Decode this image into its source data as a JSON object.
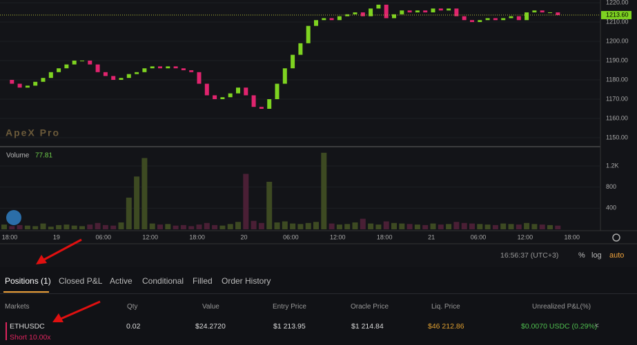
{
  "chart": {
    "logo": "ApeX Pro",
    "price_ticks": [
      {
        "value": 1150,
        "label": "1150.00"
      },
      {
        "value": 1160,
        "label": "1160.00"
      },
      {
        "value": 1170,
        "label": "1170.00"
      },
      {
        "value": 1180,
        "label": "1180.00"
      },
      {
        "value": 1190,
        "label": "1190.00"
      },
      {
        "value": 1200,
        "label": "1200.00"
      },
      {
        "value": 1210,
        "label": "1210.00"
      },
      {
        "value": 1220,
        "label": "1220.00"
      }
    ],
    "current_price": {
      "value": 1213.6,
      "label": "1213.60"
    },
    "closes": [
      1180,
      1178,
      1176,
      1177,
      1179,
      1181,
      1184,
      1186,
      1188,
      1190,
      1190,
      1188,
      1184,
      1182,
      1180,
      1181,
      1183,
      1184,
      1186,
      1187,
      1186,
      1187,
      1186,
      1185,
      1184,
      1178,
      1172,
      1170,
      1171,
      1173,
      1176,
      1172,
      1166,
      1165,
      1170,
      1178,
      1186,
      1193,
      1199,
      1208,
      1211,
      1212,
      1211,
      1213,
      1214,
      1215,
      1213,
      1217,
      1219,
      1212,
      1214,
      1216,
      1215,
      1216,
      1215,
      1217,
      1216,
      1217,
      1213,
      1211,
      1210,
      1211,
      1212,
      1211,
      1212,
      1213,
      1211,
      1215,
      1216,
      1215,
      1215,
      1213.6
    ],
    "volume_label": "Volume",
    "volume_last": 77.81,
    "volumes": [
      90,
      60,
      80,
      70,
      60,
      110,
      50,
      80,
      90,
      70,
      60,
      90,
      120,
      80,
      70,
      130,
      600,
      1000,
      1350,
      110,
      90,
      100,
      70,
      80,
      60,
      90,
      120,
      80,
      70,
      100,
      140,
      1050,
      160,
      120,
      900,
      130,
      150,
      110,
      100,
      120,
      140,
      1450,
      110,
      90,
      100,
      130,
      200,
      110,
      90,
      150,
      120,
      110,
      100,
      90,
      80,
      110,
      90,
      100,
      140,
      120,
      110,
      100,
      90,
      80,
      110,
      100,
      90,
      120,
      100,
      90,
      80,
      70
    ],
    "volume_ticks": [
      400,
      800,
      {
        "value": 1200,
        "label": "1.2K"
      }
    ],
    "time_labels": [
      "18:00",
      "19",
      "06:00",
      "12:00",
      "18:00",
      "20",
      "06:00",
      "12:00",
      "18:00",
      "21",
      "06:00",
      "12:00",
      "18:00"
    ],
    "clock": "16:56:37 (UTC+3)",
    "scale_options": [
      "%",
      "log",
      "auto"
    ]
  },
  "tabs": [
    "Positions (1)",
    "Closed P&L",
    "Active",
    "Conditional",
    "Filled",
    "Order History"
  ],
  "table": {
    "headers": [
      "Markets",
      "Qty",
      "Value",
      "Entry Price",
      "Oracle Price",
      "Liq. Price",
      "Unrealized P&L(%)"
    ],
    "row": {
      "market": "ETHUSDC",
      "side": "Short 10.00x",
      "qty": "0.02",
      "value": "$24.2720",
      "entry": "$1 213.95",
      "oracle": "$1 214.84",
      "liq": "$46 212.86",
      "pnl": "$0.0070 USDC (0.29%)"
    }
  }
}
